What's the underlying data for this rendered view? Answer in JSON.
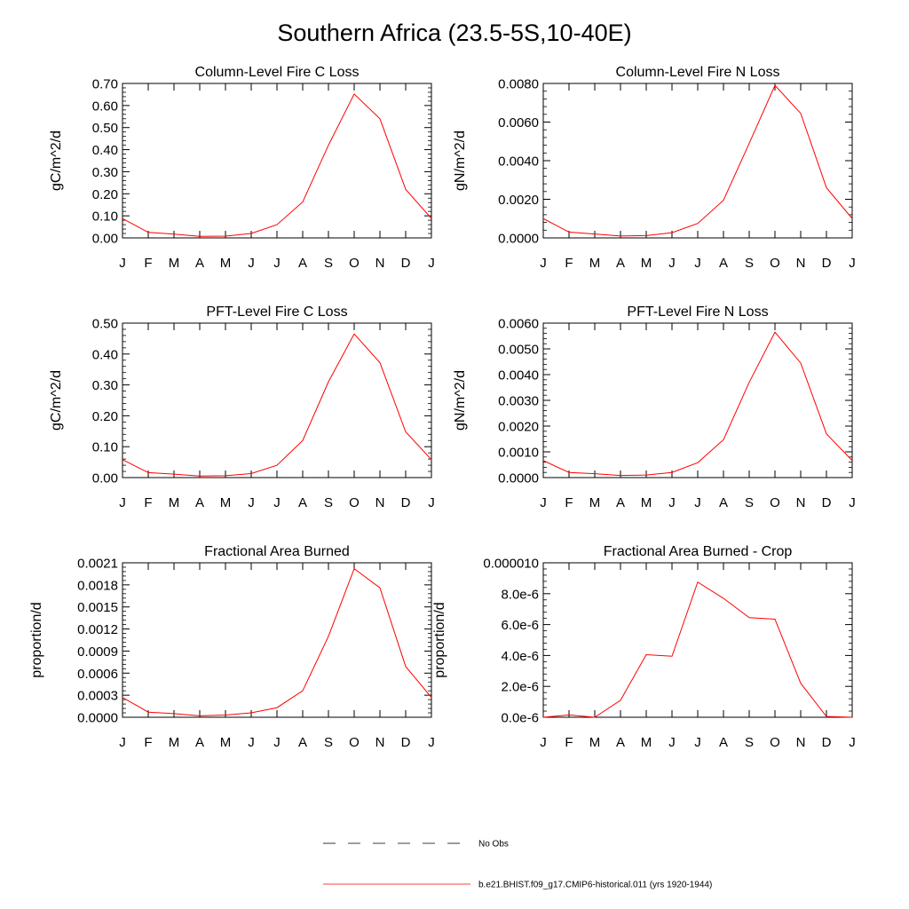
{
  "title": "Southern Africa (23.5-5S,10-40E)",
  "colors": {
    "model": "#ff0000",
    "obs": "#000000",
    "axis": "#000000"
  },
  "chart_data": [
    {
      "type": "line",
      "title": "Column-Level Fire C Loss",
      "ylabel": "gC/m^2/d",
      "categories": [
        "J",
        "F",
        "M",
        "A",
        "M",
        "J",
        "J",
        "A",
        "S",
        "O",
        "N",
        "D",
        "J"
      ],
      "ylim": [
        0,
        0.7
      ],
      "yticks": [
        "0.00",
        "0.10",
        "0.20",
        "0.30",
        "0.40",
        "0.50",
        "0.60",
        "0.70"
      ],
      "series": [
        {
          "name": "b.e21.BHIST.f09_g17.CMIP6-historical.011 (yrs 1920-1944)",
          "values": [
            0.088,
            0.025,
            0.017,
            0.007,
            0.008,
            0.02,
            0.06,
            0.163,
            0.42,
            0.652,
            0.54,
            0.22,
            0.088
          ]
        }
      ]
    },
    {
      "type": "line",
      "title": "Column-Level Fire N Loss",
      "ylabel": "gN/m^2/d",
      "categories": [
        "J",
        "F",
        "M",
        "A",
        "M",
        "J",
        "J",
        "A",
        "S",
        "O",
        "N",
        "D",
        "J"
      ],
      "ylim": [
        0,
        0.008
      ],
      "yticks": [
        "0.0000",
        "0.0020",
        "0.0040",
        "0.0060",
        "0.0080"
      ],
      "series": [
        {
          "name": "b.e21.BHIST.f09_g17.CMIP6-historical.011 (yrs 1920-1944)",
          "values": [
            0.001,
            0.0003,
            0.0002,
            0.0001,
            0.00012,
            0.00027,
            0.00075,
            0.00195,
            0.0049,
            0.0079,
            0.00645,
            0.0026,
            0.001
          ]
        }
      ]
    },
    {
      "type": "line",
      "title": "PFT-Level Fire C Loss",
      "ylabel": "gC/m^2/d",
      "categories": [
        "J",
        "F",
        "M",
        "A",
        "M",
        "J",
        "J",
        "A",
        "S",
        "O",
        "N",
        "D",
        "J"
      ],
      "ylim": [
        0,
        0.5
      ],
      "yticks": [
        "0.00",
        "0.10",
        "0.20",
        "0.30",
        "0.40",
        "0.50"
      ],
      "series": [
        {
          "name": "b.e21.BHIST.f09_g17.CMIP6-historical.011 (yrs 1920-1944)",
          "values": [
            0.058,
            0.016,
            0.011,
            0.005,
            0.006,
            0.013,
            0.04,
            0.12,
            0.31,
            0.465,
            0.372,
            0.148,
            0.058
          ]
        }
      ]
    },
    {
      "type": "line",
      "title": "PFT-Level Fire N Loss",
      "ylabel": "gN/m^2/d",
      "categories": [
        "J",
        "F",
        "M",
        "A",
        "M",
        "J",
        "J",
        "A",
        "S",
        "O",
        "N",
        "D",
        "J"
      ],
      "ylim": [
        0,
        0.006
      ],
      "yticks": [
        "0.0000",
        "0.0010",
        "0.0020",
        "0.0030",
        "0.0040",
        "0.0050",
        "0.0060"
      ],
      "series": [
        {
          "name": "b.e21.BHIST.f09_g17.CMIP6-historical.011 (yrs 1920-1944)",
          "values": [
            0.00066,
            0.0002,
            0.00015,
            8e-05,
            0.0001,
            0.0002,
            0.00058,
            0.00147,
            0.0037,
            0.00565,
            0.00445,
            0.0017,
            0.00066
          ]
        }
      ]
    },
    {
      "type": "line",
      "title": "Fractional Area Burned",
      "ylabel": "proportion/d",
      "categories": [
        "J",
        "F",
        "M",
        "A",
        "M",
        "J",
        "J",
        "A",
        "S",
        "O",
        "N",
        "D",
        "J"
      ],
      "ylim": [
        0,
        0.0021
      ],
      "yticks": [
        "0.0000",
        "0.0003",
        "0.0006",
        "0.0009",
        "0.0012",
        "0.0015",
        "0.0018",
        "0.0021"
      ],
      "series": [
        {
          "name": "b.e21.BHIST.f09_g17.CMIP6-historical.011 (yrs 1920-1944)",
          "values": [
            0.00027,
            7e-05,
            5e-05,
            2e-05,
            3e-05,
            6e-05,
            0.00013,
            0.00036,
            0.0011,
            0.00202,
            0.00176,
            0.00069,
            0.00027
          ]
        }
      ]
    },
    {
      "type": "line",
      "title": "Fractional Area Burned - Crop",
      "ylabel": "proportion/d",
      "categories": [
        "J",
        "F",
        "M",
        "A",
        "M",
        "J",
        "J",
        "A",
        "S",
        "O",
        "N",
        "D",
        "J"
      ],
      "ylim": [
        0,
        1e-05
      ],
      "yticks": [
        "0.0e-6",
        "2.0e-6",
        "4.0e-6",
        "6.0e-6",
        "8.0e-6",
        "0.000010"
      ],
      "series": [
        {
          "name": "b.e21.BHIST.f09_g17.CMIP6-historical.011 (yrs 1920-1944)",
          "values": [
            0.0,
            1.5e-07,
            0.0,
            1.1e-06,
            4.05e-06,
            3.95e-06,
            8.75e-06,
            7.7e-06,
            6.45e-06,
            6.35e-06,
            2.2e-06,
            5e-08,
            0.0
          ]
        }
      ]
    }
  ],
  "legend": {
    "items": [
      {
        "label": "No Obs",
        "style": "dashed"
      },
      {
        "label": "b.e21.BHIST.f09_g17.CMIP6-historical.011 (yrs 1920-1944)",
        "style": "solid"
      }
    ]
  }
}
